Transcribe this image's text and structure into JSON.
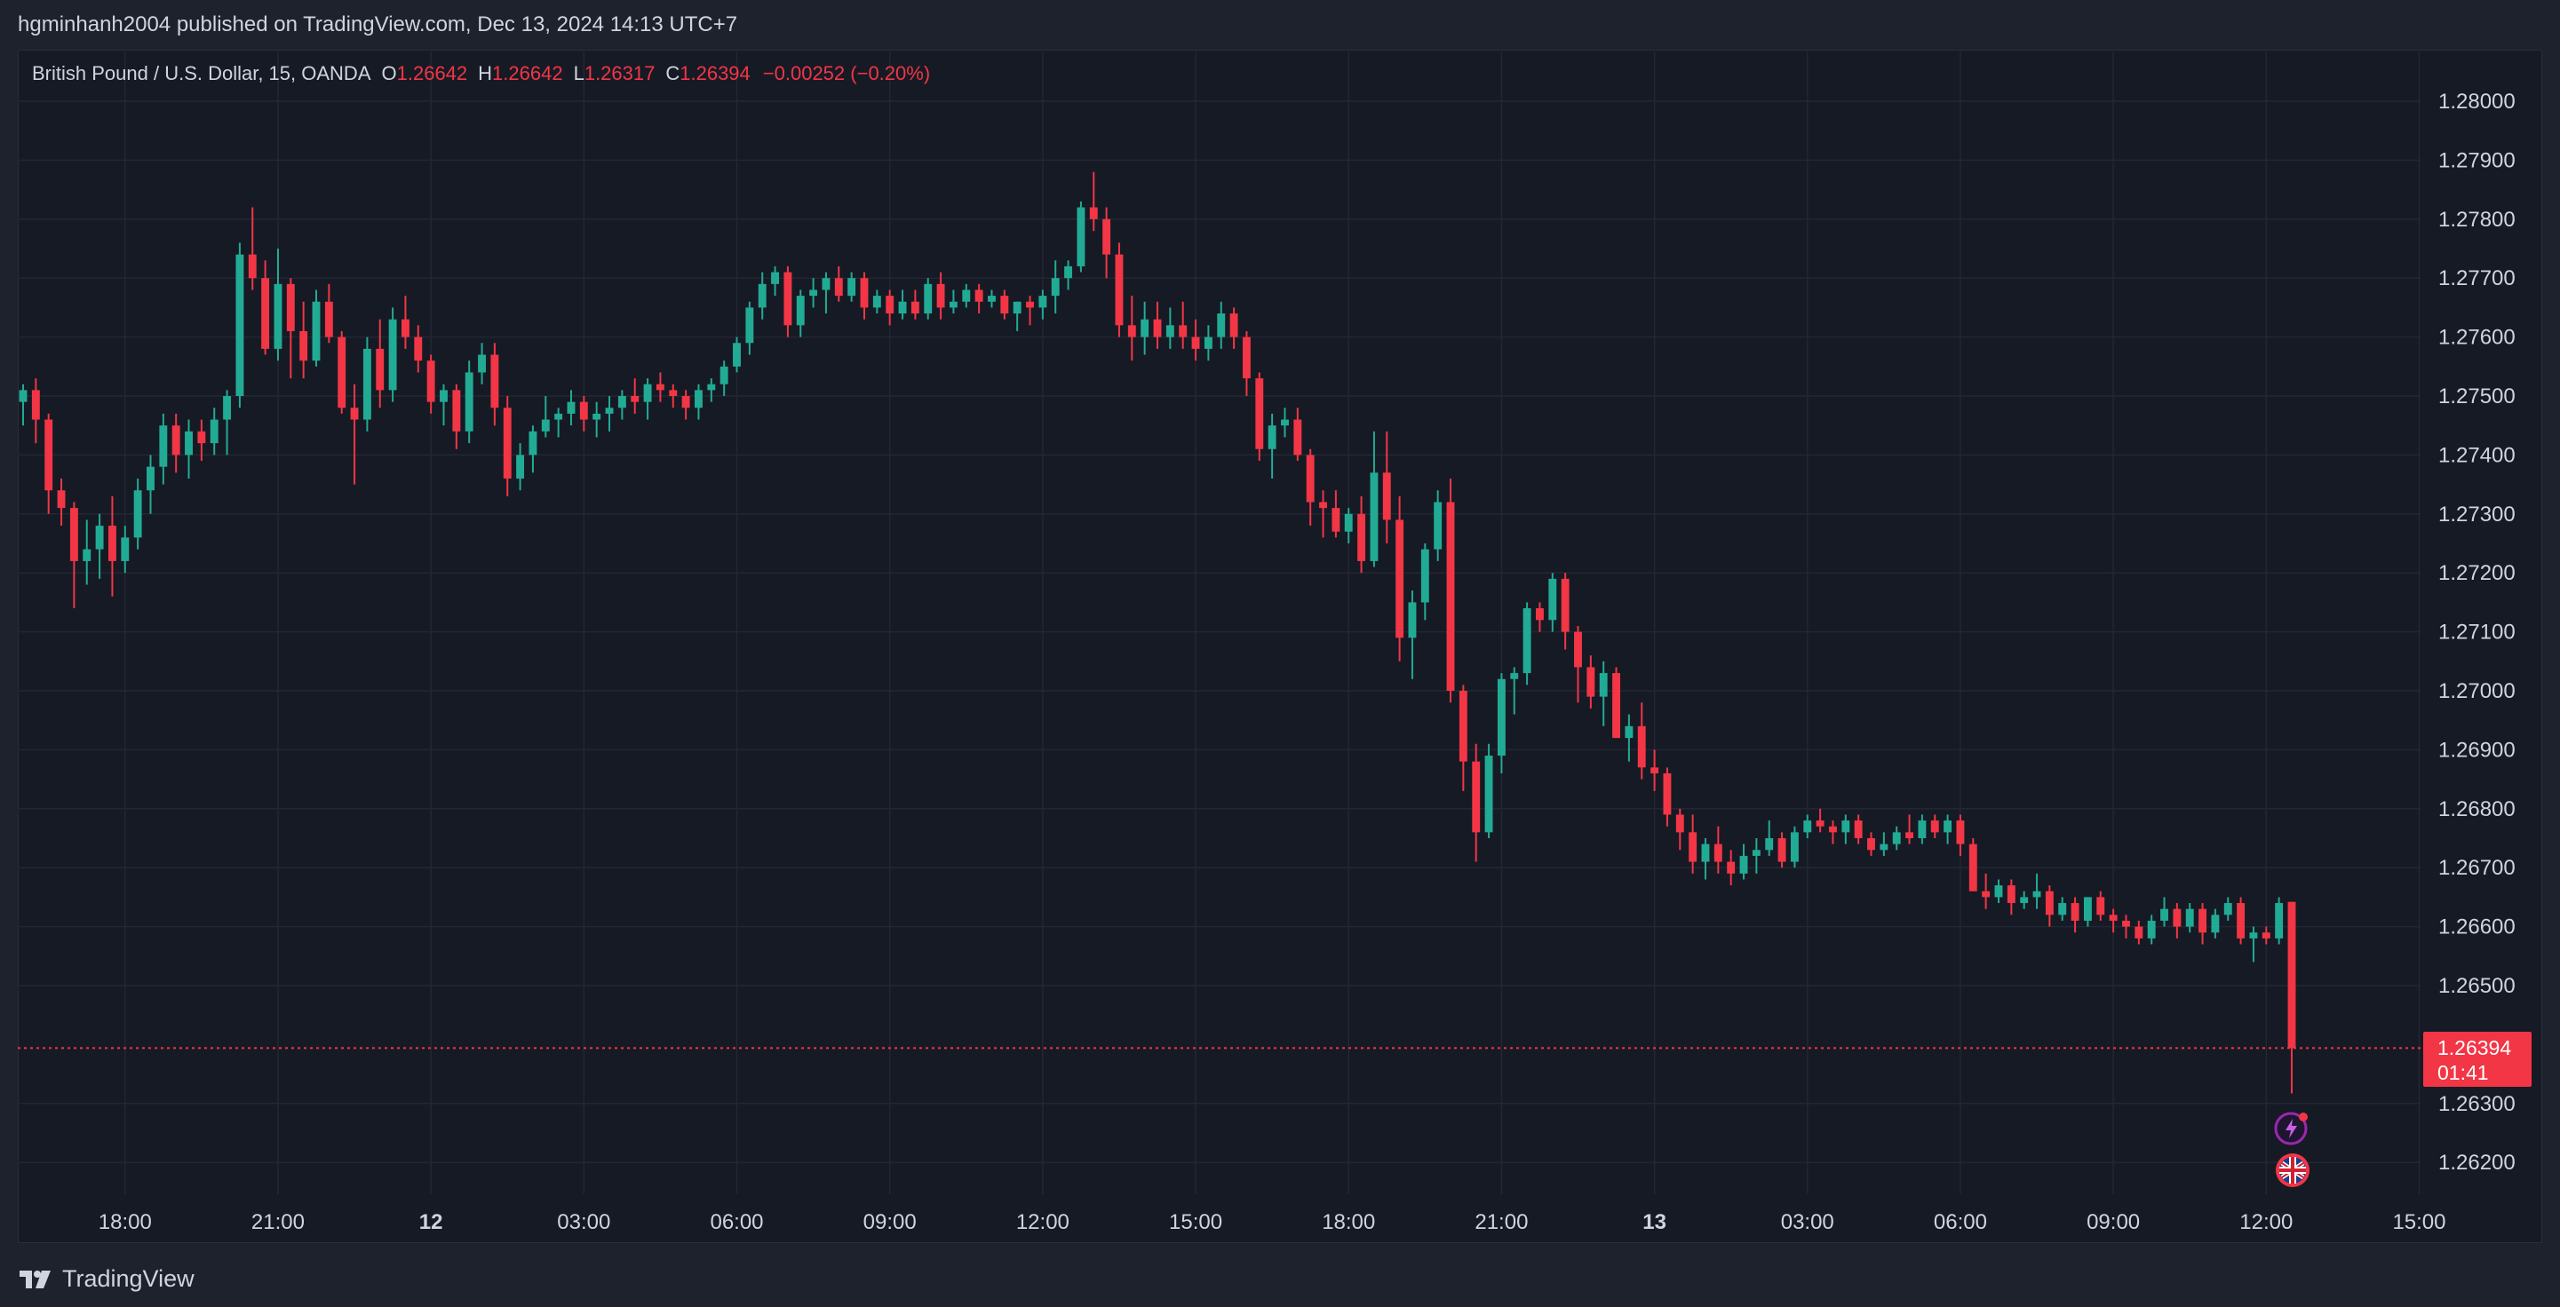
{
  "header": {
    "publisher_line": "hgminhanh2004 published on TradingView.com, Dec 13, 2024 14:13 UTC+7"
  },
  "legend": {
    "symbol": "British Pound / U.S. Dollar, 15, OANDA",
    "open_label": "O",
    "open": "1.26642",
    "high_label": "H",
    "high": "1.26642",
    "low_label": "L",
    "low": "1.26317",
    "close_label": "C",
    "close": "1.26394",
    "change": "−0.00252 (−0.20%)"
  },
  "price_tag": {
    "price": "1.26394",
    "countdown": "01:41"
  },
  "footer": {
    "brand": "TradingView"
  },
  "colors": {
    "up": "#22ab94",
    "down": "#f23645",
    "background": "#161a25",
    "grid": "#232733"
  },
  "icons": [
    "lightning-event-icon",
    "uk-flag-event-icon"
  ],
  "chart_data": {
    "type": "candlestick",
    "title": "British Pound / U.S. Dollar, 15, OANDA",
    "ylim": [
      1.2615,
      1.2805
    ],
    "y_ticks": [
      "1.28000",
      "1.27900",
      "1.27800",
      "1.27700",
      "1.27600",
      "1.27500",
      "1.27400",
      "1.27300",
      "1.27200",
      "1.27100",
      "1.27000",
      "1.26900",
      "1.26800",
      "1.26700",
      "1.26600",
      "1.26500",
      "1.26300",
      "1.26200"
    ],
    "x_ticks": [
      {
        "label": "18:00",
        "bold": false,
        "i": 8
      },
      {
        "label": "21:00",
        "bold": false,
        "i": 20
      },
      {
        "label": "12",
        "bold": true,
        "i": 32
      },
      {
        "label": "03:00",
        "bold": false,
        "i": 44
      },
      {
        "label": "06:00",
        "bold": false,
        "i": 56
      },
      {
        "label": "09:00",
        "bold": false,
        "i": 68
      },
      {
        "label": "12:00",
        "bold": false,
        "i": 80
      },
      {
        "label": "15:00",
        "bold": false,
        "i": 92
      },
      {
        "label": "18:00",
        "bold": false,
        "i": 104
      },
      {
        "label": "21:00",
        "bold": false,
        "i": 116
      },
      {
        "label": "13",
        "bold": true,
        "i": 128
      },
      {
        "label": "03:00",
        "bold": false,
        "i": 140
      },
      {
        "label": "06:00",
        "bold": false,
        "i": 152
      },
      {
        "label": "09:00",
        "bold": false,
        "i": 164
      },
      {
        "label": "12:00",
        "bold": false,
        "i": 176
      },
      {
        "label": "15:00",
        "bold": false,
        "i": 188
      }
    ],
    "last_price": 1.26394,
    "candles": [
      [
        1.2749,
        1.2752,
        1.2745,
        1.2751
      ],
      [
        1.2751,
        1.2753,
        1.2742,
        1.2746
      ],
      [
        1.2746,
        1.2747,
        1.273,
        1.2734
      ],
      [
        1.2734,
        1.2736,
        1.2728,
        1.2731
      ],
      [
        1.2731,
        1.2732,
        1.2714,
        1.2722
      ],
      [
        1.2722,
        1.2729,
        1.2718,
        1.2724
      ],
      [
        1.2724,
        1.273,
        1.2719,
        1.2728
      ],
      [
        1.2728,
        1.2733,
        1.2716,
        1.2722
      ],
      [
        1.2722,
        1.2728,
        1.272,
        1.2726
      ],
      [
        1.2726,
        1.2736,
        1.2724,
        1.2734
      ],
      [
        1.2734,
        1.274,
        1.273,
        1.2738
      ],
      [
        1.2738,
        1.2747,
        1.2735,
        1.2745
      ],
      [
        1.2745,
        1.2747,
        1.2737,
        1.274
      ],
      [
        1.274,
        1.2746,
        1.2736,
        1.2744
      ],
      [
        1.2744,
        1.2746,
        1.2739,
        1.2742
      ],
      [
        1.2742,
        1.2748,
        1.274,
        1.2746
      ],
      [
        1.2746,
        1.2751,
        1.274,
        1.275
      ],
      [
        1.275,
        1.2776,
        1.2748,
        1.2774
      ],
      [
        1.2774,
        1.2782,
        1.2768,
        1.277
      ],
      [
        1.277,
        1.2773,
        1.2757,
        1.2758
      ],
      [
        1.2758,
        1.2775,
        1.2756,
        1.2769
      ],
      [
        1.2769,
        1.277,
        1.2753,
        1.2761
      ],
      [
        1.2761,
        1.2766,
        1.2753,
        1.2756
      ],
      [
        1.2756,
        1.2768,
        1.2755,
        1.2766
      ],
      [
        1.2766,
        1.2769,
        1.2759,
        1.276
      ],
      [
        1.276,
        1.2761,
        1.2747,
        1.2748
      ],
      [
        1.2748,
        1.2752,
        1.2735,
        1.2746
      ],
      [
        1.2746,
        1.276,
        1.2744,
        1.2758
      ],
      [
        1.2758,
        1.2763,
        1.2748,
        1.2751
      ],
      [
        1.2751,
        1.2765,
        1.2749,
        1.2763
      ],
      [
        1.2763,
        1.2767,
        1.2758,
        1.276
      ],
      [
        1.276,
        1.2762,
        1.2754,
        1.2756
      ],
      [
        1.2756,
        1.2757,
        1.2747,
        1.2749
      ],
      [
        1.2749,
        1.2752,
        1.2745,
        1.2751
      ],
      [
        1.2751,
        1.2752,
        1.2741,
        1.2744
      ],
      [
        1.2744,
        1.2756,
        1.2742,
        1.2754
      ],
      [
        1.2754,
        1.2759,
        1.2752,
        1.2757
      ],
      [
        1.2757,
        1.2759,
        1.2745,
        1.2748
      ],
      [
        1.2748,
        1.275,
        1.2733,
        1.2736
      ],
      [
        1.2736,
        1.2742,
        1.2734,
        1.274
      ],
      [
        1.274,
        1.2745,
        1.2737,
        1.2744
      ],
      [
        1.2744,
        1.275,
        1.2743,
        1.2746
      ],
      [
        1.2746,
        1.2748,
        1.2743,
        1.2747
      ],
      [
        1.2747,
        1.2751,
        1.2745,
        1.2749
      ],
      [
        1.2749,
        1.275,
        1.2744,
        1.2746
      ],
      [
        1.2746,
        1.2749,
        1.2743,
        1.2747
      ],
      [
        1.2747,
        1.275,
        1.2744,
        1.2748
      ],
      [
        1.2748,
        1.2751,
        1.2746,
        1.275
      ],
      [
        1.275,
        1.2753,
        1.2747,
        1.2749
      ],
      [
        1.2749,
        1.2753,
        1.2746,
        1.2752
      ],
      [
        1.2752,
        1.2754,
        1.2749,
        1.2751
      ],
      [
        1.2751,
        1.2752,
        1.2748,
        1.275
      ],
      [
        1.275,
        1.2751,
        1.2746,
        1.2748
      ],
      [
        1.2748,
        1.2752,
        1.2746,
        1.2751
      ],
      [
        1.2751,
        1.2753,
        1.2749,
        1.2752
      ],
      [
        1.2752,
        1.2756,
        1.275,
        1.2755
      ],
      [
        1.2755,
        1.276,
        1.2754,
        1.2759
      ],
      [
        1.2759,
        1.2766,
        1.2757,
        1.2765
      ],
      [
        1.2765,
        1.2771,
        1.2763,
        1.2769
      ],
      [
        1.2769,
        1.2772,
        1.2767,
        1.2771
      ],
      [
        1.2771,
        1.2772,
        1.276,
        1.2762
      ],
      [
        1.2762,
        1.2768,
        1.276,
        1.2767
      ],
      [
        1.2767,
        1.277,
        1.2765,
        1.2768
      ],
      [
        1.2768,
        1.2771,
        1.2764,
        1.277
      ],
      [
        1.277,
        1.2772,
        1.2766,
        1.2767
      ],
      [
        1.2767,
        1.2771,
        1.2766,
        1.277
      ],
      [
        1.277,
        1.2771,
        1.2763,
        1.2765
      ],
      [
        1.2765,
        1.2768,
        1.2764,
        1.2767
      ],
      [
        1.2767,
        1.2768,
        1.2762,
        1.2764
      ],
      [
        1.2764,
        1.2768,
        1.2763,
        1.2766
      ],
      [
        1.2766,
        1.2768,
        1.2763,
        1.2764
      ],
      [
        1.2764,
        1.277,
        1.2763,
        1.2769
      ],
      [
        1.2769,
        1.2771,
        1.2763,
        1.2765
      ],
      [
        1.2765,
        1.2768,
        1.2764,
        1.2766
      ],
      [
        1.2766,
        1.2769,
        1.2765,
        1.2768
      ],
      [
        1.2768,
        1.2769,
        1.2764,
        1.2766
      ],
      [
        1.2766,
        1.2768,
        1.2765,
        1.2767
      ],
      [
        1.2767,
        1.2768,
        1.2763,
        1.2764
      ],
      [
        1.2764,
        1.2766,
        1.2761,
        1.2766
      ],
      [
        1.2766,
        1.2767,
        1.2762,
        1.2765
      ],
      [
        1.2765,
        1.2768,
        1.2763,
        1.2767
      ],
      [
        1.2767,
        1.2773,
        1.2764,
        1.277
      ],
      [
        1.277,
        1.2773,
        1.2768,
        1.2772
      ],
      [
        1.2772,
        1.2783,
        1.2771,
        1.2782
      ],
      [
        1.2782,
        1.2788,
        1.2778,
        1.278
      ],
      [
        1.278,
        1.2782,
        1.277,
        1.2774
      ],
      [
        1.2774,
        1.2776,
        1.276,
        1.2762
      ],
      [
        1.2762,
        1.2767,
        1.2756,
        1.276
      ],
      [
        1.276,
        1.2766,
        1.2757,
        1.2763
      ],
      [
        1.2763,
        1.2766,
        1.2758,
        1.276
      ],
      [
        1.276,
        1.2765,
        1.2758,
        1.2762
      ],
      [
        1.2762,
        1.2766,
        1.2758,
        1.276
      ],
      [
        1.276,
        1.2763,
        1.2756,
        1.2758
      ],
      [
        1.2758,
        1.2762,
        1.2756,
        1.276
      ],
      [
        1.276,
        1.2766,
        1.2758,
        1.2764
      ],
      [
        1.2764,
        1.2765,
        1.2758,
        1.276
      ],
      [
        1.276,
        1.2761,
        1.275,
        1.2753
      ],
      [
        1.2753,
        1.2754,
        1.2739,
        1.2741
      ],
      [
        1.2741,
        1.2747,
        1.2736,
        1.2745
      ],
      [
        1.2745,
        1.2748,
        1.2743,
        1.2746
      ],
      [
        1.2746,
        1.2748,
        1.2739,
        1.274
      ],
      [
        1.274,
        1.2741,
        1.2728,
        1.2732
      ],
      [
        1.2732,
        1.2734,
        1.2726,
        1.2731
      ],
      [
        1.2731,
        1.2734,
        1.2726,
        1.2727
      ],
      [
        1.2727,
        1.2731,
        1.2725,
        1.273
      ],
      [
        1.273,
        1.2733,
        1.272,
        1.2722
      ],
      [
        1.2722,
        1.2744,
        1.2721,
        1.2737
      ],
      [
        1.2737,
        1.2744,
        1.2725,
        1.2729
      ],
      [
        1.2729,
        1.2733,
        1.2705,
        1.2709
      ],
      [
        1.2709,
        1.2717,
        1.2702,
        1.2715
      ],
      [
        1.2715,
        1.2725,
        1.2712,
        1.2724
      ],
      [
        1.2724,
        1.2734,
        1.2722,
        1.2732
      ],
      [
        1.2732,
        1.2736,
        1.2698,
        1.27
      ],
      [
        1.27,
        1.2701,
        1.2683,
        1.2688
      ],
      [
        1.2688,
        1.2691,
        1.2671,
        1.2676
      ],
      [
        1.2676,
        1.2691,
        1.2675,
        1.2689
      ],
      [
        1.2689,
        1.2703,
        1.2686,
        1.2702
      ],
      [
        1.2702,
        1.2704,
        1.2696,
        1.2703
      ],
      [
        1.2703,
        1.2715,
        1.2701,
        1.2714
      ],
      [
        1.2714,
        1.2715,
        1.271,
        1.2712
      ],
      [
        1.2712,
        1.272,
        1.271,
        1.2719
      ],
      [
        1.2719,
        1.272,
        1.2707,
        1.271
      ],
      [
        1.271,
        1.2711,
        1.2698,
        1.2704
      ],
      [
        1.2704,
        1.2706,
        1.2697,
        1.2699
      ],
      [
        1.2699,
        1.2705,
        1.2694,
        1.2703
      ],
      [
        1.2703,
        1.2704,
        1.2692,
        1.2692
      ],
      [
        1.2692,
        1.2696,
        1.2688,
        1.2694
      ],
      [
        1.2694,
        1.2698,
        1.2685,
        1.2687
      ],
      [
        1.2687,
        1.269,
        1.2683,
        1.2686
      ],
      [
        1.2686,
        1.2687,
        1.2677,
        1.2679
      ],
      [
        1.2679,
        1.268,
        1.2673,
        1.2676
      ],
      [
        1.2676,
        1.2679,
        1.2669,
        1.2671
      ],
      [
        1.2671,
        1.2675,
        1.2668,
        1.2674
      ],
      [
        1.2674,
        1.2677,
        1.2669,
        1.2671
      ],
      [
        1.2671,
        1.2673,
        1.2667,
        1.2669
      ],
      [
        1.2669,
        1.2674,
        1.2668,
        1.2672
      ],
      [
        1.2672,
        1.2675,
        1.2669,
        1.2673
      ],
      [
        1.2673,
        1.2678,
        1.2672,
        1.2675
      ],
      [
        1.2675,
        1.2676,
        1.267,
        1.2671
      ],
      [
        1.2671,
        1.2677,
        1.267,
        1.2676
      ],
      [
        1.2676,
        1.2679,
        1.2675,
        1.2678
      ],
      [
        1.2678,
        1.268,
        1.2676,
        1.2677
      ],
      [
        1.2677,
        1.2678,
        1.2674,
        1.2676
      ],
      [
        1.2676,
        1.2679,
        1.2674,
        1.2678
      ],
      [
        1.2678,
        1.2679,
        1.2674,
        1.2675
      ],
      [
        1.2675,
        1.2676,
        1.2672,
        1.2673
      ],
      [
        1.2673,
        1.2676,
        1.2672,
        1.2674
      ],
      [
        1.2674,
        1.2677,
        1.2673,
        1.2676
      ],
      [
        1.2676,
        1.2679,
        1.2674,
        1.2675
      ],
      [
        1.2675,
        1.2679,
        1.2674,
        1.2678
      ],
      [
        1.2678,
        1.2679,
        1.2675,
        1.2676
      ],
      [
        1.2676,
        1.2679,
        1.2674,
        1.2678
      ],
      [
        1.2678,
        1.2679,
        1.2672,
        1.2674
      ],
      [
        1.2674,
        1.2675,
        1.2666,
        1.2666
      ],
      [
        1.2666,
        1.2669,
        1.2663,
        1.2665
      ],
      [
        1.2665,
        1.2668,
        1.2664,
        1.2667
      ],
      [
        1.2667,
        1.2668,
        1.2662,
        1.2664
      ],
      [
        1.2664,
        1.2666,
        1.2663,
        1.2665
      ],
      [
        1.2665,
        1.2669,
        1.2663,
        1.2666
      ],
      [
        1.2666,
        1.2667,
        1.266,
        1.2662
      ],
      [
        1.2662,
        1.2665,
        1.2661,
        1.2664
      ],
      [
        1.2664,
        1.2665,
        1.2659,
        1.2661
      ],
      [
        1.2661,
        1.2665,
        1.266,
        1.2665
      ],
      [
        1.2665,
        1.2666,
        1.2661,
        1.2662
      ],
      [
        1.2662,
        1.2663,
        1.2659,
        1.2661
      ],
      [
        1.2661,
        1.2662,
        1.2658,
        1.266
      ],
      [
        1.266,
        1.2661,
        1.2657,
        1.2658
      ],
      [
        1.2658,
        1.2662,
        1.2657,
        1.2661
      ],
      [
        1.2661,
        1.2665,
        1.266,
        1.2663
      ],
      [
        1.2663,
        1.2664,
        1.2658,
        1.266
      ],
      [
        1.266,
        1.2664,
        1.2659,
        1.2663
      ],
      [
        1.2663,
        1.2664,
        1.2657,
        1.2659
      ],
      [
        1.2659,
        1.2663,
        1.2658,
        1.2662
      ],
      [
        1.2662,
        1.2665,
        1.2661,
        1.2664
      ],
      [
        1.2664,
        1.2665,
        1.2657,
        1.2658
      ],
      [
        1.2658,
        1.266,
        1.2654,
        1.2659
      ],
      [
        1.2659,
        1.266,
        1.2657,
        1.2658
      ],
      [
        1.2658,
        1.2665,
        1.2657,
        1.2664
      ],
      [
        1.26642,
        1.26642,
        1.26317,
        1.26394
      ]
    ]
  }
}
